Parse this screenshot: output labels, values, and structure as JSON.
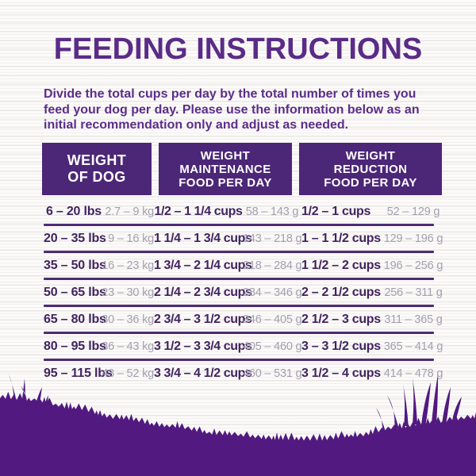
{
  "page": {
    "title": "FEEDING INSTRUCTIONS",
    "description_lines": [
      "Divide the total cups per day by the total number of times you",
      "feed your dog per day. Please use the information below as an",
      "initial recommendation only and adjust as needed."
    ]
  },
  "table": {
    "headers": [
      {
        "lines": [
          "WEIGHT",
          "OF DOG"
        ]
      },
      {
        "lines": [
          "WEIGHT",
          "MAINTENANCE",
          "FOOD PER DAY"
        ]
      },
      {
        "lines": [
          "WEIGHT",
          "REDUCTION",
          "FOOD PER DAY"
        ]
      }
    ],
    "rows": [
      {
        "lbs": "6 – 20 lbs",
        "kg": "2.7 – 9 kg",
        "maintenance_cups": "1/2 – 1 1/4 cups",
        "maintenance_g": "58 – 143 g",
        "reduction_cups": "1/2 – 1 cups",
        "reduction_g": "52 – 129 g"
      },
      {
        "lbs": "20 – 35 lbs",
        "kg": "9 – 16 kg",
        "maintenance_cups": "1 1/4 – 1 3/4 cups",
        "maintenance_g": "143 – 218 g",
        "reduction_cups": "1 – 1 1/2 cups",
        "reduction_g": "129 – 196 g"
      },
      {
        "lbs": "35 – 50 lbs",
        "kg": "16 – 23 kg",
        "maintenance_cups": "1 3/4 – 2 1/4 cups",
        "maintenance_g": "218 – 284 g",
        "reduction_cups": "1 1/2 – 2 cups",
        "reduction_g": "196 – 256 g"
      },
      {
        "lbs": "50 – 65 lbs",
        "kg": "23 – 30 kg",
        "maintenance_cups": "2 1/4 – 2 3/4 cups",
        "maintenance_g": "284 – 346 g",
        "reduction_cups": "2 – 2 1/2 cups",
        "reduction_g": "256 – 311 g"
      },
      {
        "lbs": "65 – 80 lbs",
        "kg": "30 – 36 kg",
        "maintenance_cups": "2 3/4 – 3 1/2 cups",
        "maintenance_g": "346 – 405 g",
        "reduction_cups": "2 1/2 – 3 cups",
        "reduction_g": "311 – 365 g"
      },
      {
        "lbs": "80 – 95 lbs",
        "kg": "36 – 43 kg",
        "maintenance_cups": "3 1/2 – 3 3/4 cups",
        "maintenance_g": "405 – 460 g",
        "reduction_cups": "3 – 3 1/2 cups",
        "reduction_g": "365 – 414 g"
      },
      {
        "lbs": "95 – 115 lbs",
        "kg": "43 – 52 kg",
        "maintenance_cups": "3 3/4 – 4 1/2 cups",
        "maintenance_g": "460 – 531 g",
        "reduction_cups": "3 1/2 – 4 cups",
        "reduction_g": "414 – 478 g"
      }
    ]
  },
  "colors": {
    "title_purple": "#5b2b87",
    "header_box_purple": "#4c2677",
    "row_value_purple": "#41235f",
    "metric_gray": "#a49fb0",
    "separator_purple": "#4d2b74",
    "grass_purple": "#521a80",
    "background": "#fcfbfa"
  }
}
